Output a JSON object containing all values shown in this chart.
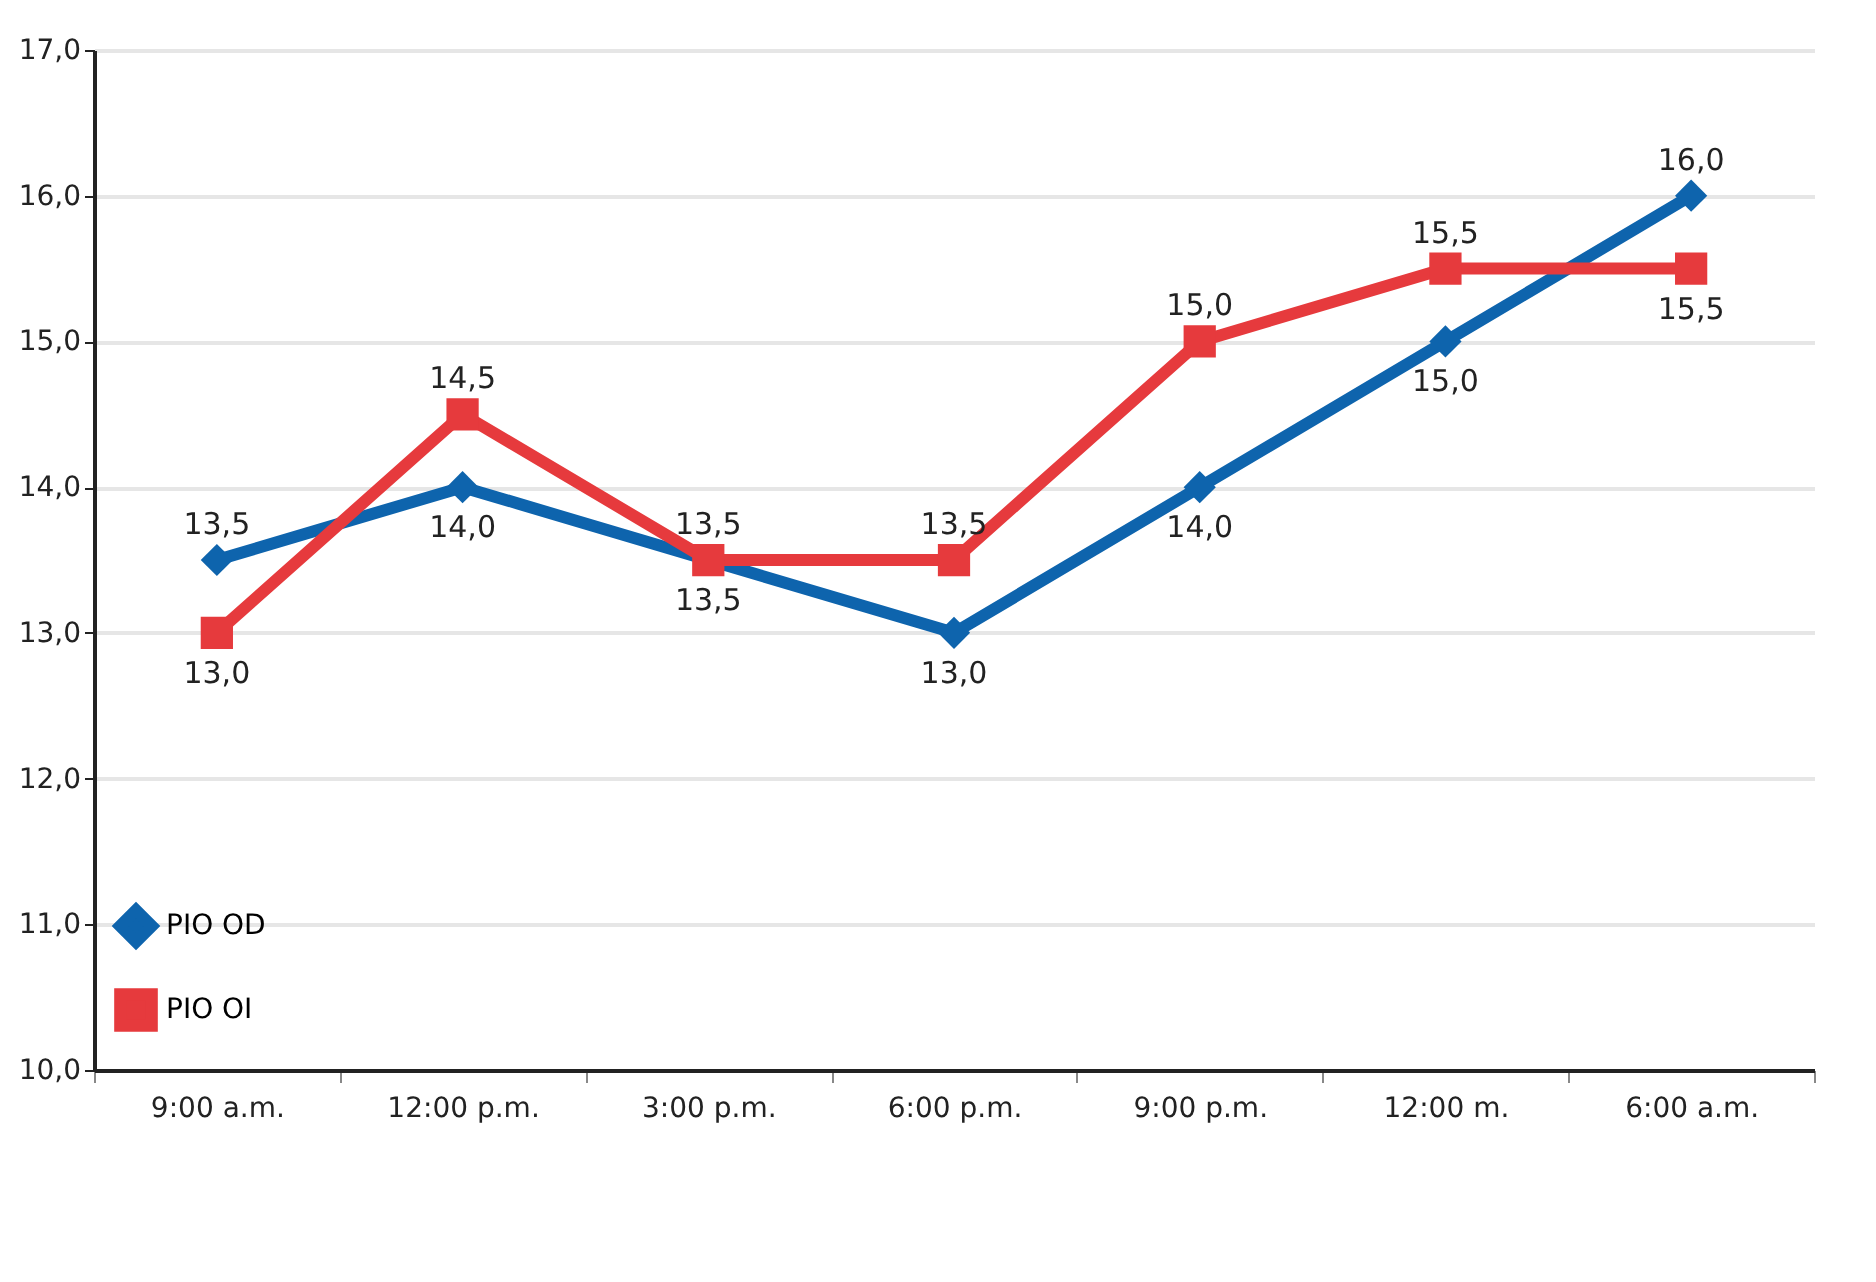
{
  "chart_data": {
    "type": "line",
    "categories": [
      "9:00 a.m.",
      "12:00 p.m.",
      "3:00 p.m.",
      "6:00 p.m.",
      "9:00 p.m.",
      "12:00 m.",
      "6:00 a.m."
    ],
    "series": [
      {
        "name": "PIO OD",
        "color": "#0e64ad",
        "marker": "diamond",
        "values": [
          13.5,
          14,
          13.5,
          13,
          14,
          15,
          16
        ],
        "value_labels": [
          "13,5",
          "14,0",
          "13,5",
          "13,0",
          "14,0",
          "15,0",
          "16,0"
        ]
      },
      {
        "name": "PIO OI",
        "color": "#e63a3d",
        "marker": "square",
        "values": [
          13,
          14.5,
          13.5,
          13.5,
          15,
          15.5,
          15.5
        ],
        "value_labels": [
          "13,0",
          "14,5",
          "13,5",
          "13,5",
          "15,0",
          "15,5",
          "15,5"
        ]
      }
    ],
    "ylim": [
      10,
      17
    ],
    "yticks": [
      {
        "value": 10,
        "label": "10,0"
      },
      {
        "value": 11,
        "label": "11,0"
      },
      {
        "value": 12,
        "label": "12,0"
      },
      {
        "value": 13,
        "label": "13,0"
      },
      {
        "value": 14,
        "label": "14,0"
      },
      {
        "value": 15,
        "label": "15,0"
      },
      {
        "value": 16,
        "label": "16,0"
      },
      {
        "value": 17,
        "label": "17,0"
      }
    ],
    "grid": "y",
    "legend": "bottom left",
    "line_style": "solid"
  }
}
